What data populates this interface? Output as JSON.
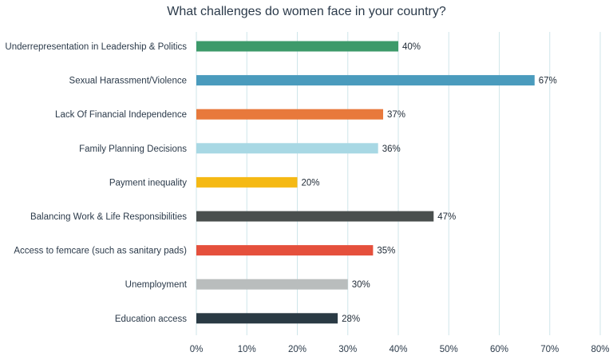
{
  "chart_data": {
    "type": "bar",
    "orientation": "horizontal",
    "title": "What challenges do women face in your country?",
    "xlabel": "",
    "ylabel": "",
    "xlim": [
      0,
      80
    ],
    "x_ticks": [
      "0%",
      "10%",
      "20%",
      "30%",
      "40%",
      "50%",
      "60%",
      "70%",
      "80%"
    ],
    "grid": true,
    "legend": "none",
    "categories": [
      "Underrepresentation in Leadership & Politics",
      "Sexual Harassment/Violence",
      "Lack Of Financial Independence",
      "Family Planning Decisions",
      "Payment inequality",
      "Balancing Work & Life Responsibilities",
      "Access to femcare (such as sanitary pads)",
      "Unemployment",
      "Education access"
    ],
    "values": [
      40,
      67,
      37,
      36,
      20,
      47,
      35,
      30,
      28
    ],
    "value_labels": [
      "40%",
      "67%",
      "37%",
      "36%",
      "20%",
      "47%",
      "35%",
      "30%",
      "28%"
    ],
    "colors": [
      "#3d9a6a",
      "#4a9bbd",
      "#e8793c",
      "#a8d8e4",
      "#f5b914",
      "#4a4f4e",
      "#e5503c",
      "#b9bdbd",
      "#2a3a44"
    ]
  }
}
